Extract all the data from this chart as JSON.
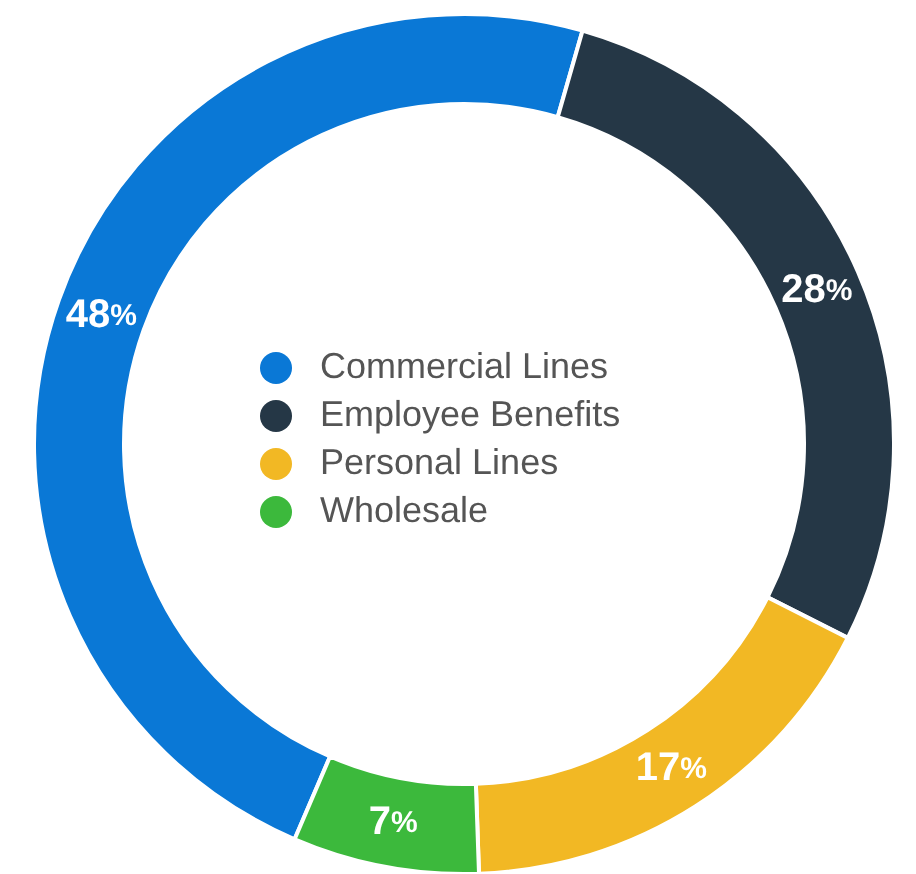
{
  "chart_data": {
    "type": "donut",
    "categories": [
      "Commercial Lines",
      "Employee Benefits",
      "Personal Lines",
      "Wholesale"
    ],
    "values": [
      48,
      28,
      17,
      7
    ],
    "colors": [
      "#0a78d6",
      "#253746",
      "#f2b824",
      "#3cb93c"
    ],
    "value_labels": [
      "48%",
      "28%",
      "17%",
      "7%"
    ],
    "legend": "center"
  }
}
